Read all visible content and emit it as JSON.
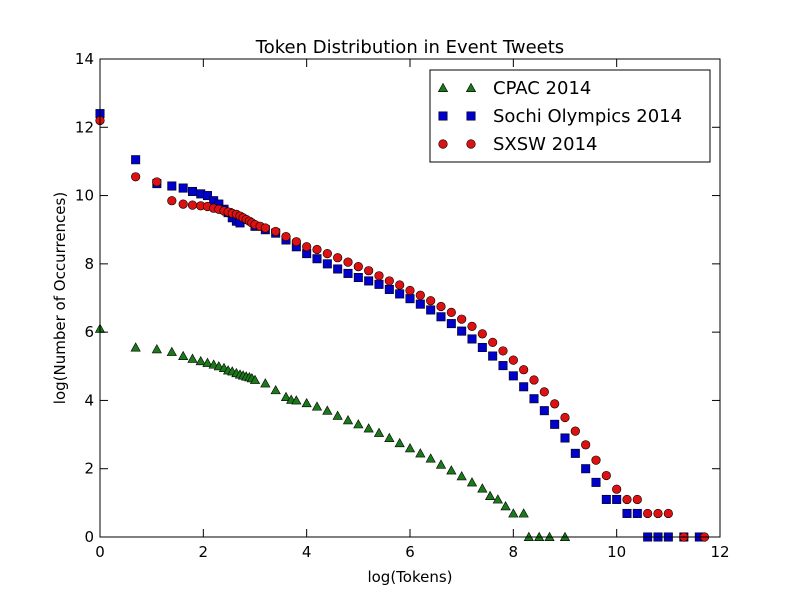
{
  "chart_data": {
    "type": "scatter",
    "title": "Token Distribution in Event Tweets",
    "xlabel": "log(Tokens)",
    "ylabel": "log(Number of Occurrences)",
    "xlim": [
      0,
      12
    ],
    "ylim": [
      0,
      14
    ],
    "xticks": [
      "0",
      "2",
      "4",
      "6",
      "8",
      "10",
      "12"
    ],
    "yticks": [
      "0",
      "2",
      "4",
      "6",
      "8",
      "10",
      "12",
      "14"
    ],
    "grid": false,
    "legend_position": "top-right",
    "series": [
      {
        "name": "CPAC 2014",
        "marker": "triangle",
        "color": "#1a7a1a",
        "x": [
          0,
          0.69,
          1.1,
          1.39,
          1.61,
          1.79,
          1.95,
          2.08,
          2.2,
          2.3,
          2.4,
          2.48,
          2.56,
          2.64,
          2.71,
          2.77,
          2.83,
          2.89,
          2.94,
          3.0,
          3.2,
          3.4,
          3.6,
          3.7,
          3.8,
          4.0,
          4.2,
          4.4,
          4.6,
          4.8,
          5.0,
          5.2,
          5.4,
          5.6,
          5.8,
          6.0,
          6.2,
          6.4,
          6.6,
          6.8,
          7.0,
          7.2,
          7.4,
          7.55,
          7.7,
          7.85,
          8.0,
          8.2,
          8.3,
          8.5,
          8.7,
          9.0
        ],
        "y": [
          6.1,
          5.55,
          5.5,
          5.42,
          5.3,
          5.22,
          5.15,
          5.1,
          5.05,
          5.0,
          4.95,
          4.88,
          4.85,
          4.8,
          4.76,
          4.73,
          4.7,
          4.68,
          4.65,
          4.6,
          4.5,
          4.3,
          4.1,
          4.02,
          4.0,
          3.92,
          3.82,
          3.7,
          3.55,
          3.42,
          3.3,
          3.18,
          3.05,
          2.9,
          2.75,
          2.6,
          2.45,
          2.3,
          2.12,
          1.95,
          1.78,
          1.6,
          1.42,
          1.2,
          1.1,
          0.9,
          0.69,
          0.69,
          0,
          0,
          0,
          0
        ]
      },
      {
        "name": "Sochi Olympics 2014",
        "marker": "square",
        "color": "#0000cc",
        "x": [
          0,
          0.69,
          1.1,
          1.39,
          1.61,
          1.79,
          1.95,
          2.08,
          2.2,
          2.3,
          2.4,
          2.48,
          2.56,
          2.64,
          2.71,
          3.0,
          3.2,
          3.4,
          3.6,
          3.8,
          4.0,
          4.2,
          4.4,
          4.6,
          4.8,
          5.0,
          5.2,
          5.4,
          5.6,
          5.8,
          6.0,
          6.2,
          6.4,
          6.6,
          6.8,
          7.0,
          7.2,
          7.4,
          7.6,
          7.8,
          8.0,
          8.2,
          8.4,
          8.6,
          8.8,
          9.0,
          9.2,
          9.4,
          9.6,
          9.8,
          10.0,
          10.2,
          10.4,
          10.6,
          10.8,
          11.0,
          11.3,
          11.6
        ],
        "y": [
          12.4,
          11.05,
          10.35,
          10.28,
          10.22,
          10.12,
          10.05,
          10.0,
          9.85,
          9.75,
          9.6,
          9.5,
          9.35,
          9.25,
          9.2,
          9.1,
          9.0,
          8.9,
          8.7,
          8.5,
          8.3,
          8.15,
          8.0,
          7.85,
          7.72,
          7.6,
          7.5,
          7.4,
          7.25,
          7.12,
          6.98,
          6.82,
          6.65,
          6.45,
          6.25,
          6.03,
          5.8,
          5.55,
          5.3,
          5.02,
          4.72,
          4.4,
          4.05,
          3.7,
          3.3,
          2.9,
          2.45,
          2.0,
          1.6,
          1.1,
          1.1,
          0.69,
          0.69,
          0,
          0,
          0,
          0,
          0
        ]
      },
      {
        "name": "SXSW 2014",
        "marker": "circle",
        "color": "#dd1111",
        "x": [
          0,
          0.69,
          1.1,
          1.39,
          1.61,
          1.79,
          1.95,
          2.08,
          2.2,
          2.3,
          2.4,
          2.48,
          2.56,
          2.64,
          2.71,
          2.77,
          2.83,
          2.89,
          2.94,
          3.0,
          3.1,
          3.2,
          3.4,
          3.6,
          3.8,
          4.0,
          4.2,
          4.4,
          4.6,
          4.8,
          5.0,
          5.2,
          5.4,
          5.6,
          5.8,
          6.0,
          6.2,
          6.4,
          6.6,
          6.8,
          7.0,
          7.2,
          7.4,
          7.6,
          7.8,
          8.0,
          8.2,
          8.4,
          8.6,
          8.8,
          9.0,
          9.2,
          9.4,
          9.6,
          9.8,
          10.0,
          10.2,
          10.4,
          10.6,
          10.8,
          11.0,
          11.3,
          11.7
        ],
        "y": [
          12.2,
          10.55,
          10.4,
          9.85,
          9.75,
          9.72,
          9.7,
          9.68,
          9.63,
          9.6,
          9.55,
          9.52,
          9.48,
          9.45,
          9.4,
          9.35,
          9.3,
          9.25,
          9.2,
          9.15,
          9.1,
          9.05,
          8.95,
          8.8,
          8.65,
          8.5,
          8.42,
          8.3,
          8.18,
          8.05,
          7.92,
          7.8,
          7.65,
          7.5,
          7.38,
          7.22,
          7.08,
          6.92,
          6.75,
          6.58,
          6.38,
          6.17,
          5.95,
          5.7,
          5.45,
          5.18,
          4.9,
          4.6,
          4.25,
          3.9,
          3.5,
          3.1,
          2.7,
          2.25,
          1.8,
          1.4,
          1.1,
          1.1,
          0.69,
          0.69,
          0.69,
          0,
          0
        ]
      }
    ]
  }
}
